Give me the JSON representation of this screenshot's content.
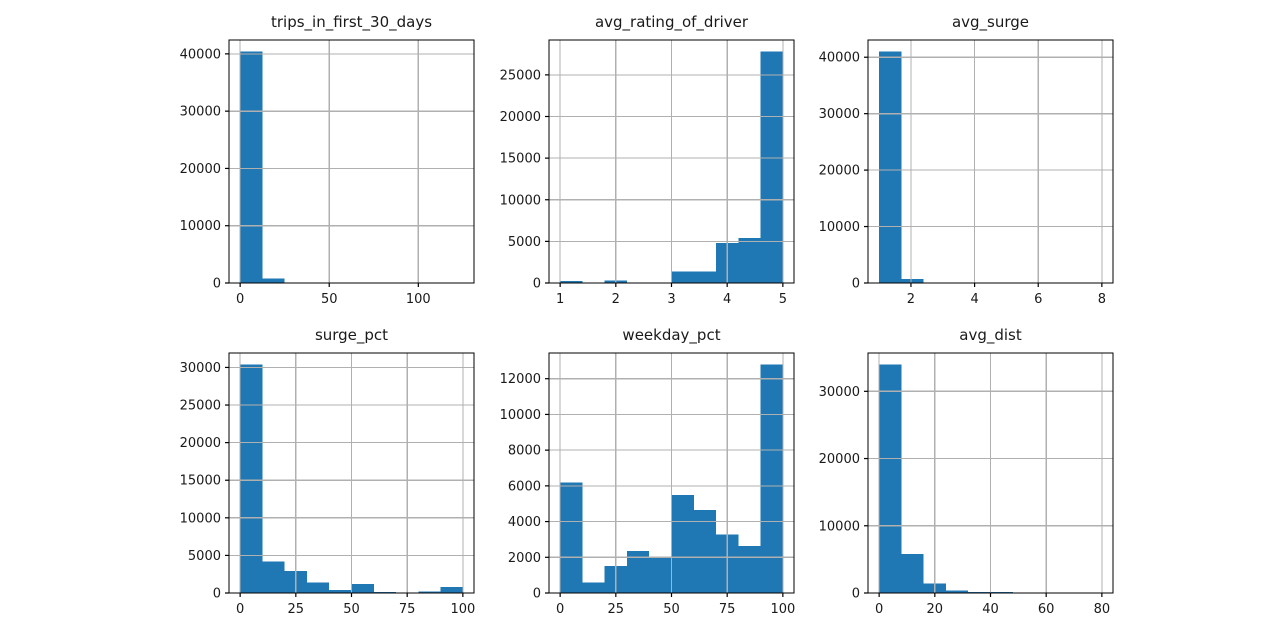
{
  "figure": {
    "background": "#ffffff",
    "bar_color": "#1f77b4",
    "grid_color": "#b0b0b0",
    "spine_color": "#000000",
    "text_color": "#1a1a1a"
  },
  "chart_data": [
    {
      "type": "bar",
      "title": "trips_in_first_30_days",
      "bin_start": 0,
      "bin_width": 12.5,
      "values": [
        40400,
        800,
        0,
        0,
        0,
        0,
        0,
        0,
        0,
        0
      ],
      "x_ticks": [
        0,
        50,
        100
      ],
      "y_ticks": [
        0,
        10000,
        20000,
        30000,
        40000
      ],
      "xlim": [
        -6.25,
        131.25
      ],
      "ylim": [
        0,
        42420
      ],
      "grid": true,
      "legend": "none"
    },
    {
      "type": "bar",
      "title": "avg_rating_of_driver",
      "bin_start": 1,
      "bin_width": 0.4,
      "values": [
        250,
        0,
        300,
        0,
        0,
        1400,
        1400,
        4800,
        5400,
        27800
      ],
      "x_ticks": [
        1,
        2,
        3,
        4,
        5
      ],
      "y_ticks": [
        0,
        5000,
        10000,
        15000,
        20000,
        25000
      ],
      "xlim": [
        0.8,
        5.2
      ],
      "ylim": [
        0,
        29190
      ],
      "grid": true,
      "legend": "none"
    },
    {
      "type": "bar",
      "title": "avg_surge",
      "bin_start": 1,
      "bin_width": 0.7,
      "values": [
        41000,
        700,
        0,
        0,
        0,
        0,
        0,
        0,
        0,
        0
      ],
      "x_ticks": [
        2,
        4,
        6,
        8
      ],
      "y_ticks": [
        0,
        10000,
        20000,
        30000,
        40000
      ],
      "xlim": [
        0.65,
        8.35
      ],
      "ylim": [
        0,
        43050
      ],
      "grid": true,
      "legend": "none"
    },
    {
      "type": "bar",
      "title": "surge_pct",
      "bin_start": 0,
      "bin_width": 10,
      "values": [
        30400,
        4200,
        2900,
        1400,
        400,
        1200,
        150,
        100,
        200,
        800
      ],
      "x_ticks": [
        0,
        25,
        50,
        75,
        100
      ],
      "y_ticks": [
        0,
        5000,
        10000,
        15000,
        20000,
        25000,
        30000
      ],
      "xlim": [
        -5,
        105
      ],
      "ylim": [
        0,
        31920
      ],
      "grid": true,
      "legend": "none"
    },
    {
      "type": "bar",
      "title": "weekday_pct",
      "bin_start": 0,
      "bin_width": 10,
      "values": [
        6200,
        600,
        1500,
        2350,
        2000,
        5500,
        4650,
        3270,
        2640,
        12800
      ],
      "x_ticks": [
        0,
        25,
        50,
        75,
        100
      ],
      "y_ticks": [
        0,
        2000,
        4000,
        6000,
        8000,
        10000,
        12000
      ],
      "xlim": [
        -5,
        105
      ],
      "ylim": [
        0,
        13440
      ],
      "grid": true,
      "legend": "none"
    },
    {
      "type": "bar",
      "title": "avg_dist",
      "bin_start": 0,
      "bin_width": 8,
      "values": [
        34000,
        5800,
        1400,
        400,
        150,
        120,
        100,
        100,
        100,
        100
      ],
      "x_ticks": [
        0,
        20,
        40,
        60,
        80
      ],
      "y_ticks": [
        0,
        10000,
        20000,
        30000
      ],
      "xlim": [
        -4,
        84
      ],
      "ylim": [
        0,
        35700
      ],
      "grid": true,
      "legend": "none"
    }
  ]
}
